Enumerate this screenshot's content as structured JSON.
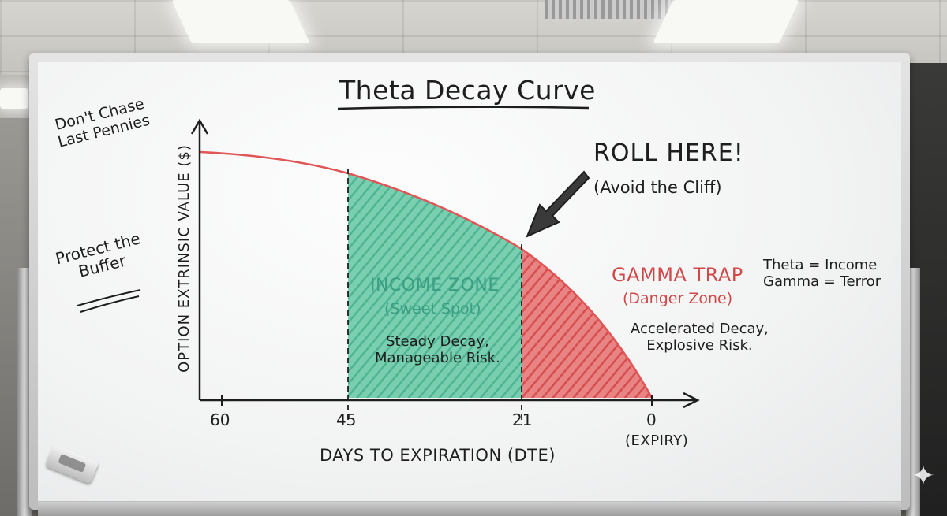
{
  "board": {
    "title": "Theta Decay Curve",
    "side_notes": {
      "note_a_line1": "Don't Chase",
      "note_a_line2": "Last Pennies",
      "note_b_line1": "Protect the",
      "note_b_line2": "Buffer"
    },
    "y_axis_label": "OPTION EXTRINSIC VALUE ($)",
    "x_axis_label": "DAYS TO EXPIRATION (DTE)",
    "x_ticks": [
      "60",
      "45",
      "21",
      "0"
    ],
    "expiry_label": "(EXPIRY)",
    "callout": {
      "title": "ROLL HERE!",
      "subtitle": "(Avoid the Cliff)"
    },
    "income_zone": {
      "title": "INCOME ZONE",
      "subtitle": "(Sweet Spot)",
      "desc_line1": "Steady Decay,",
      "desc_line2": "Manageable Risk."
    },
    "gamma_trap": {
      "title": "GAMMA TRAP",
      "subtitle": "(Danger Zone)",
      "desc_line1": "Accelerated Decay,",
      "desc_line2": "Explosive Risk."
    },
    "legend": {
      "line1": "Theta = Income",
      "line2": "Gamma = Terror"
    }
  },
  "colors": {
    "curve": "#e05656",
    "income_fill": "#4bb894",
    "gamma_fill": "#d94848",
    "marker_text": "#1e1e1e"
  },
  "icons": {
    "arrow": "hand-drawn-arrow-icon",
    "sparkle": "sparkle-icon"
  }
}
